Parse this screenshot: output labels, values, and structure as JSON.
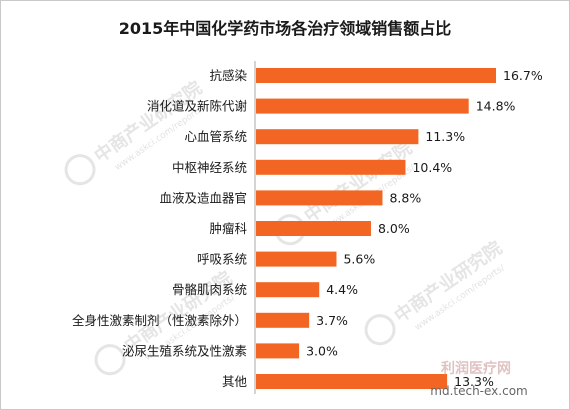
{
  "chart_data": {
    "type": "bar",
    "orientation": "horizontal",
    "title": "2015年中国化学药市场各治疗领域销售额占比",
    "categories": [
      "抗感染",
      "消化道及新陈代谢",
      "心血管系统",
      "中枢神经系统",
      "血液及造血器官",
      "肿瘤科",
      "呼吸系统",
      "骨骼肌肉系统",
      "全身性激素制剂（性激素除外）",
      "泌尿生殖系统及性激素",
      "其他"
    ],
    "values": [
      16.7,
      14.8,
      11.3,
      10.4,
      8.8,
      8.0,
      5.6,
      4.4,
      3.7,
      3.0,
      13.3
    ],
    "value_labels": [
      "16.7%",
      "14.8%",
      "11.3%",
      "10.4%",
      "8.8%",
      "8.0%",
      "5.6%",
      "4.4%",
      "3.7%",
      "3.0%",
      "13.3%"
    ],
    "unit": "%",
    "xlim": [
      0,
      18
    ],
    "bar_color": "#f26522",
    "grid": false,
    "legend": "none"
  },
  "watermark": {
    "text": "中商产业研究院",
    "url": "www.askci.com/reports/"
  },
  "site_logo": {
    "text": "利润医疗网",
    "url": "md.tech-ex.com"
  }
}
